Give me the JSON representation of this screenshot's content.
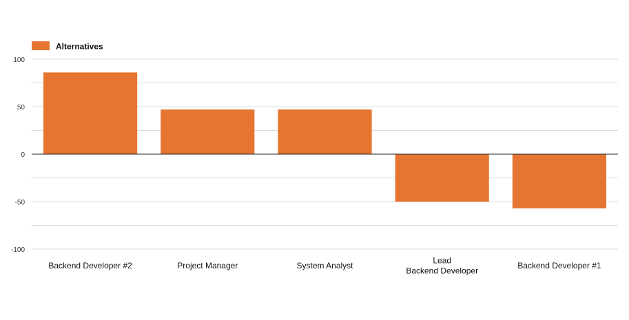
{
  "chart_data": {
    "type": "bar",
    "categories": [
      [
        "Backend Developer #2"
      ],
      [
        "Project Manager"
      ],
      [
        "System Analyst"
      ],
      [
        "Lead",
        "Backend Developer"
      ],
      [
        "Backend Developer #1"
      ]
    ],
    "series": [
      {
        "name": "Alternatives",
        "color": "#e57530",
        "values": [
          86,
          47,
          47,
          -50,
          -57
        ]
      }
    ],
    "y_ticks": [
      100,
      50,
      0,
      -50,
      -100
    ],
    "ylim": [
      -100,
      100
    ],
    "grid": true,
    "legend_position": "top-left",
    "title": "",
    "xlabel": "",
    "ylabel": ""
  }
}
